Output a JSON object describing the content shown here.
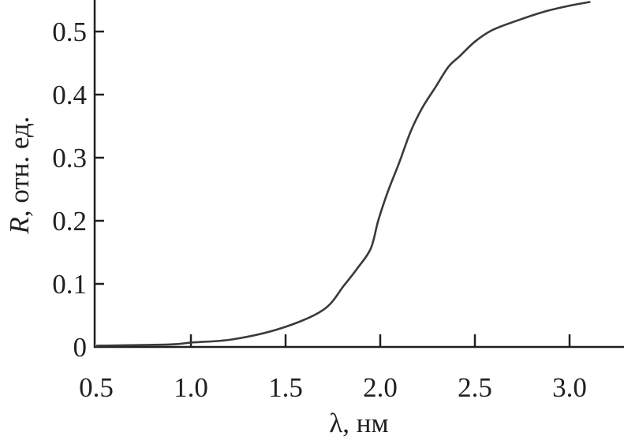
{
  "chart_data": {
    "type": "line",
    "title": "",
    "xlabel": "λ, нм",
    "ylabel_symbol": "R",
    "ylabel_rest": ", отн. ед.",
    "xlim": [
      0.5,
      3.29
    ],
    "ylim": [
      0,
      0.55
    ],
    "grid": false,
    "xticks": [
      0.5,
      1.0,
      1.5,
      2.0,
      2.5,
      3.0
    ],
    "xtick_labels": [
      "0.5",
      "1.0",
      "1.5",
      "2.0",
      "2.5",
      "3.0"
    ],
    "yticks": [
      0,
      0.1,
      0.2,
      0.3,
      0.4,
      0.5
    ],
    "ytick_labels": [
      "0",
      "0.1",
      "0.2",
      "0.3",
      "0.4",
      "0.5"
    ],
    "line_color": "#3a3a3a",
    "series": [
      {
        "x": [
          0.5,
          0.89,
          1.0,
          1.22,
          1.48,
          1.7,
          1.81,
          1.88,
          1.95,
          1.99,
          2.04,
          2.1,
          2.16,
          2.22,
          2.29,
          2.36,
          2.42,
          2.5,
          2.59,
          2.71,
          2.86,
          3.0,
          3.11
        ],
        "y": [
          0.002,
          0.004,
          0.007,
          0.012,
          0.03,
          0.059,
          0.098,
          0.125,
          0.156,
          0.201,
          0.246,
          0.292,
          0.341,
          0.378,
          0.411,
          0.444,
          0.461,
          0.484,
          0.502,
          0.516,
          0.531,
          0.541,
          0.547
        ]
      }
    ]
  }
}
